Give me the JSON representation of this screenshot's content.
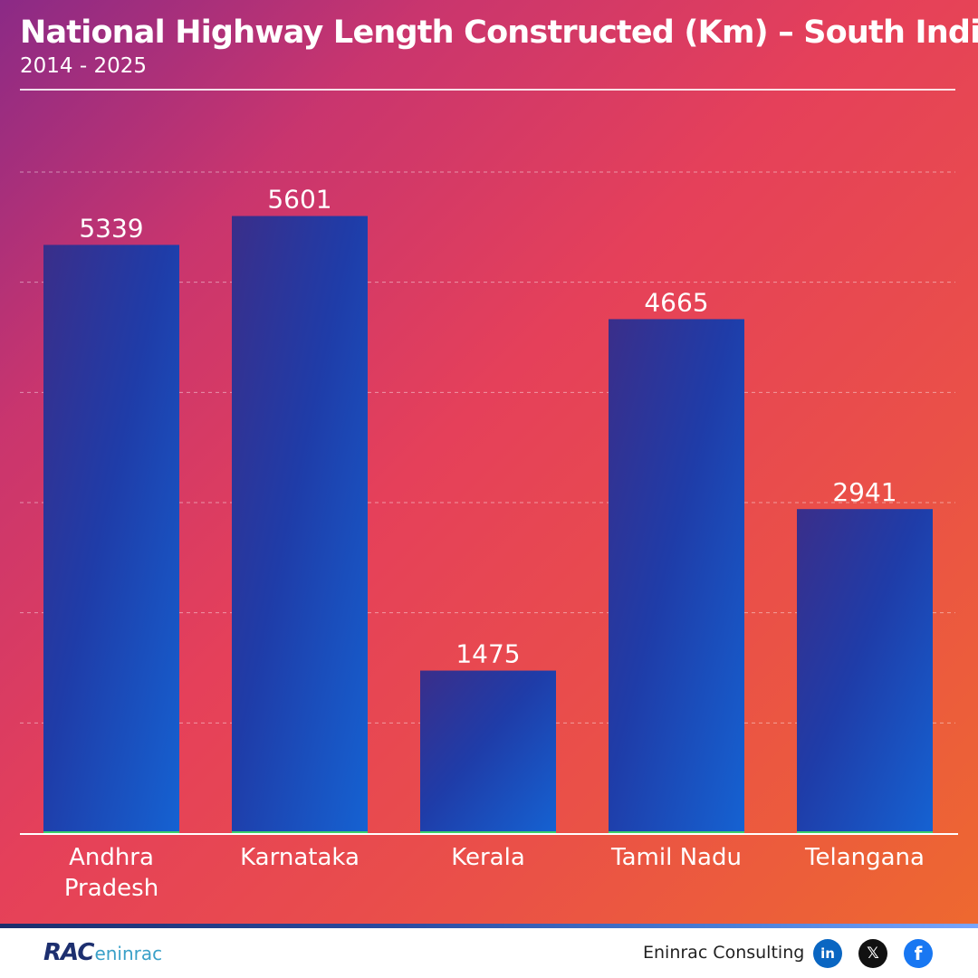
{
  "header": {
    "title": "National Highway Length Constructed (Km) – South India",
    "subtitle": "2014 - 2025"
  },
  "chart_data": {
    "type": "bar",
    "title": "National Highway Length Constructed (Km) – South India",
    "subtitle": "2014 - 2025",
    "categories": [
      "Andhra Pradesh",
      "Karnataka",
      "Kerala",
      "Tamil Nadu",
      "Telangana"
    ],
    "category_lines": [
      [
        "Andhra",
        "Pradesh"
      ],
      [
        "Karnataka"
      ],
      [
        "Kerala"
      ],
      [
        "Tamil Nadu"
      ],
      [
        "Telangana"
      ]
    ],
    "values": [
      5339,
      5601,
      1475,
      4665,
      2941
    ],
    "ylim": [
      0,
      6000
    ],
    "gridlines": [
      1000,
      2000,
      3000,
      4000,
      5000,
      6000
    ],
    "grid": true,
    "legend": "none",
    "xlabel": "",
    "ylabel": "",
    "bar_color_top": "#2a3aa8",
    "bar_color_bottom": "#1d64d8"
  },
  "footer": {
    "logo_rac": "RAC",
    "logo_eninrac": "eninrac",
    "brand": "Eninrac Consulting",
    "social": [
      {
        "icon": "linkedin-icon",
        "glyph": "in"
      },
      {
        "icon": "x-icon",
        "glyph": "𝕏"
      },
      {
        "icon": "facebook-icon",
        "glyph": "f"
      }
    ]
  },
  "colors": {
    "background_start": "#8b2a86",
    "background_mid": "#e5405a",
    "background_end": "#ee6b2d",
    "bar": "#1e4fc0",
    "axis": "#ffffff"
  }
}
